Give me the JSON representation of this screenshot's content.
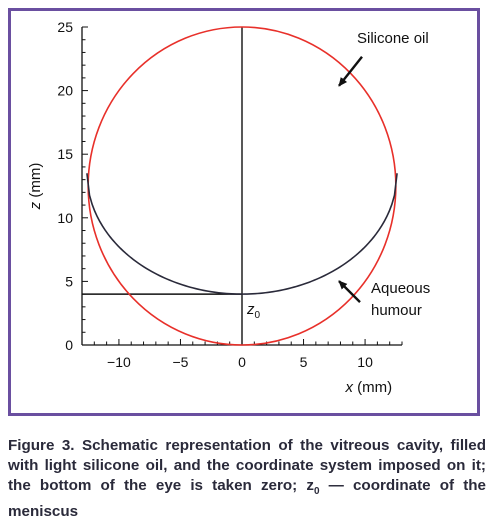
{
  "frame_color": "#6a4fa0",
  "chart_data": {
    "type": "line",
    "xlabel_var": "x",
    "xlabel_unit": " (mm)",
    "ylabel_var": "z",
    "ylabel_unit": " (mm)",
    "xlim": [
      -13,
      13
    ],
    "ylim": [
      0,
      25
    ],
    "xticks": [
      -10,
      -5,
      0,
      5,
      10
    ],
    "xtick_labels": [
      "−10",
      "−5",
      "0",
      "5",
      "10"
    ],
    "yticks": [
      0,
      5,
      10,
      15,
      20,
      25
    ],
    "ytick_labels": [
      "0",
      "5",
      "10",
      "15",
      "20",
      "25"
    ],
    "grid": false,
    "series": [
      {
        "kind": "circle",
        "center": [
          0,
          12.5
        ],
        "radius": 12.5,
        "color": "#e8302a"
      },
      {
        "kind": "meniscus",
        "x_range": [
          -12.6,
          12.6
        ],
        "z_min": 4,
        "z_max": 13.5,
        "color": "#2a2a3a"
      }
    ],
    "guides": {
      "x0": 0,
      "z0": 4
    },
    "annotations": {
      "silicone": {
        "label": "Silicone oil",
        "arrow_tip": [
          7.8,
          20.3
        ]
      },
      "aqueous": {
        "label_line1": "Aqueous",
        "label_line2": "humour",
        "arrow_tip": [
          7.8,
          5.1
        ]
      },
      "z0": {
        "label": "z",
        "sub": "0"
      }
    }
  },
  "caption": {
    "text": "Figure 3. Schematic representation of the vitreous cavity, filled with light silicone oil, and the coordinate system imposed on it; the bottom of the eye is taken zero; z",
    "sub": "0",
    "tail": " — coordinate of the meniscus"
  }
}
